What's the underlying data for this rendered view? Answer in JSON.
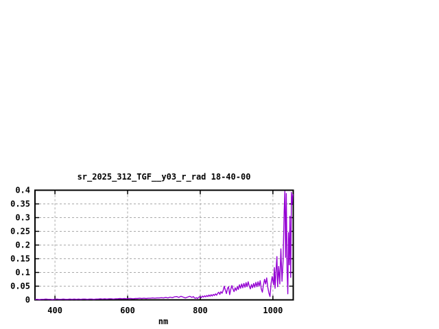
{
  "chart_data": {
    "type": "line",
    "title": "sr_2025_312_TGF__y03_r_rad 18-40-00",
    "xlabel": "nm",
    "ylabel": "",
    "xlim": [
      345,
      1056
    ],
    "ylim": [
      0,
      0.4
    ],
    "grid": true,
    "legend": "none",
    "x_ticks": [
      400,
      600,
      800,
      1000
    ],
    "x_tick_labels": [
      "400",
      "600",
      "800",
      "1000"
    ],
    "y_ticks": [
      0,
      0.05,
      0.1,
      0.15,
      0.2,
      0.25,
      0.3,
      0.35,
      0.4
    ],
    "y_tick_labels": [
      "0",
      "0.05",
      "0.1",
      "0.15",
      "0.2",
      "0.25",
      "0.3",
      "0.35",
      "0.4"
    ],
    "colors": {
      "line": "#9400d3",
      "grid": "#a8a8a8",
      "axis": "#000000",
      "background": "#ffffff"
    },
    "series": [
      {
        "name": "sr_2025_312_TGF__y03_r_rad",
        "color": "#9400d3",
        "points": [
          [
            345,
            0.002
          ],
          [
            351,
            0.002
          ],
          [
            357,
            0.001
          ],
          [
            363,
            0.002
          ],
          [
            369,
            0.002
          ],
          [
            375,
            0.003
          ],
          [
            381,
            0.002
          ],
          [
            387,
            0.002
          ],
          [
            393,
            0.001
          ],
          [
            399,
            0.002
          ],
          [
            405,
            0.003
          ],
          [
            411,
            0.002
          ],
          [
            417,
            0.002
          ],
          [
            423,
            0.003
          ],
          [
            429,
            0.002
          ],
          [
            435,
            0.002
          ],
          [
            441,
            0.003
          ],
          [
            447,
            0.002
          ],
          [
            453,
            0.003
          ],
          [
            459,
            0.002
          ],
          [
            465,
            0.003
          ],
          [
            471,
            0.002
          ],
          [
            477,
            0.003
          ],
          [
            483,
            0.003
          ],
          [
            489,
            0.002
          ],
          [
            495,
            0.003
          ],
          [
            501,
            0.003
          ],
          [
            507,
            0.002
          ],
          [
            513,
            0.003
          ],
          [
            519,
            0.003
          ],
          [
            525,
            0.004
          ],
          [
            531,
            0.003
          ],
          [
            537,
            0.004
          ],
          [
            543,
            0.003
          ],
          [
            549,
            0.004
          ],
          [
            555,
            0.004
          ],
          [
            561,
            0.003
          ],
          [
            567,
            0.004
          ],
          [
            573,
            0.004
          ],
          [
            579,
            0.005
          ],
          [
            585,
            0.004
          ],
          [
            591,
            0.005
          ],
          [
            597,
            0.004
          ],
          [
            603,
            0.005
          ],
          [
            609,
            0.005
          ],
          [
            615,
            0.004
          ],
          [
            621,
            0.005
          ],
          [
            627,
            0.005
          ],
          [
            633,
            0.006
          ],
          [
            639,
            0.005
          ],
          [
            645,
            0.006
          ],
          [
            651,
            0.005
          ],
          [
            657,
            0.006
          ],
          [
            663,
            0.006
          ],
          [
            669,
            0.007
          ],
          [
            675,
            0.006
          ],
          [
            681,
            0.007
          ],
          [
            687,
            0.007
          ],
          [
            693,
            0.008
          ],
          [
            699,
            0.007
          ],
          [
            705,
            0.009
          ],
          [
            711,
            0.007
          ],
          [
            717,
            0.01
          ],
          [
            723,
            0.008
          ],
          [
            729,
            0.011
          ],
          [
            735,
            0.012
          ],
          [
            741,
            0.009
          ],
          [
            747,
            0.013
          ],
          [
            753,
            0.01
          ],
          [
            759,
            0.007
          ],
          [
            765,
            0.01
          ],
          [
            771,
            0.013
          ],
          [
            777,
            0.009
          ],
          [
            781,
            0.012
          ],
          [
            784,
            0.007
          ],
          [
            787,
            0.006
          ],
          [
            790,
            0.008
          ],
          [
            793,
            0.005
          ],
          [
            796,
            0.01
          ],
          [
            800,
            0.012
          ],
          [
            803,
            0.008
          ],
          [
            806,
            0.014
          ],
          [
            809,
            0.01
          ],
          [
            812,
            0.015
          ],
          [
            815,
            0.011
          ],
          [
            818,
            0.016
          ],
          [
            821,
            0.012
          ],
          [
            824,
            0.018
          ],
          [
            827,
            0.013
          ],
          [
            830,
            0.019
          ],
          [
            833,
            0.014
          ],
          [
            836,
            0.02
          ],
          [
            839,
            0.016
          ],
          [
            842,
            0.022
          ],
          [
            845,
            0.017
          ],
          [
            848,
            0.024
          ],
          [
            851,
            0.028
          ],
          [
            854,
            0.02
          ],
          [
            857,
            0.03
          ],
          [
            860,
            0.024
          ],
          [
            863,
            0.034
          ],
          [
            866,
            0.05
          ],
          [
            869,
            0.036
          ],
          [
            872,
            0.023
          ],
          [
            875,
            0.042
          ],
          [
            878,
            0.048
          ],
          [
            881,
            0.019
          ],
          [
            884,
            0.038
          ],
          [
            887,
            0.052
          ],
          [
            890,
            0.04
          ],
          [
            893,
            0.03
          ],
          [
            896,
            0.044
          ],
          [
            899,
            0.034
          ],
          [
            902,
            0.048
          ],
          [
            905,
            0.038
          ],
          [
            908,
            0.055
          ],
          [
            911,
            0.042
          ],
          [
            914,
            0.058
          ],
          [
            917,
            0.044
          ],
          [
            920,
            0.06
          ],
          [
            923,
            0.046
          ],
          [
            926,
            0.063
          ],
          [
            929,
            0.048
          ],
          [
            932,
            0.066
          ],
          [
            935,
            0.05
          ],
          [
            938,
            0.04
          ],
          [
            941,
            0.056
          ],
          [
            944,
            0.044
          ],
          [
            947,
            0.06
          ],
          [
            950,
            0.046
          ],
          [
            953,
            0.064
          ],
          [
            956,
            0.048
          ],
          [
            959,
            0.066
          ],
          [
            962,
            0.05
          ],
          [
            965,
            0.07
          ],
          [
            968,
            0.04
          ],
          [
            971,
            0.028
          ],
          [
            974,
            0.055
          ],
          [
            977,
            0.075
          ],
          [
            980,
            0.058
          ],
          [
            983,
            0.08
          ],
          [
            986,
            0.046
          ],
          [
            989,
            0.025
          ],
          [
            992,
            0.012
          ],
          [
            995,
            0.06
          ],
          [
            998,
            0.085
          ],
          [
            1000,
            0.07
          ],
          [
            1002,
            0.055
          ],
          [
            1004,
            0.118
          ],
          [
            1006,
            0.042
          ],
          [
            1008,
            0.095
          ],
          [
            1011,
            0.158
          ],
          [
            1013,
            0.048
          ],
          [
            1016,
            0.122
          ],
          [
            1019,
            0.058
          ],
          [
            1022,
            0.186
          ],
          [
            1025,
            0.068
          ],
          [
            1028,
            0.142
          ],
          [
            1031,
            0.325
          ],
          [
            1033,
            0.396
          ],
          [
            1035,
            0.155
          ],
          [
            1037,
            0.388
          ],
          [
            1039,
            0.108
          ],
          [
            1041,
            0.022
          ],
          [
            1043,
            0.245
          ],
          [
            1045,
            0.128
          ],
          [
            1047,
            0.305
          ],
          [
            1049,
            0.082
          ],
          [
            1051,
            0.392
          ],
          [
            1053,
            0.348
          ],
          [
            1055,
            0.386
          ]
        ]
      }
    ]
  }
}
